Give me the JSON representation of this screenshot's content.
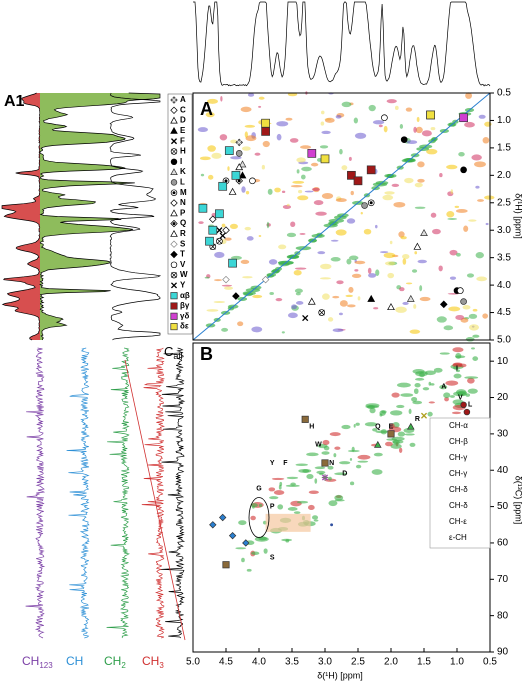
{
  "panel_a1_label": "A1",
  "c_all_label": {
    "main": "C",
    "sub": "all"
  },
  "trace_labels": [
    {
      "main": "CH",
      "sub": "123",
      "color": "#7b3fa6"
    },
    {
      "main": "CH",
      "sub": "",
      "color": "#2c8fd6"
    },
    {
      "main": "CH",
      "sub": "2",
      "color": "#2e9e4a"
    },
    {
      "main": "CH",
      "sub": "3",
      "color": "#d03030"
    }
  ],
  "chart_data": [
    {
      "type": "scatter",
      "panel_label": "A",
      "y_label": "δ(¹H) [ppm]",
      "xlim": [
        5.0,
        0.5
      ],
      "ylim": [
        0.5,
        5.0
      ],
      "yticks": [
        0.5,
        {
          "value": 1.0,
          "label": "1.0"
        },
        1.5,
        {
          "value": 2.0,
          "label": "2.0"
        },
        2.5,
        {
          "value": 3.0,
          "label": "3.0"
        },
        3.5,
        {
          "value": 4.0,
          "label": "4.0"
        },
        4.5,
        {
          "value": 5.0,
          "label": "5.0"
        }
      ],
      "series": [
        {
          "name": "A",
          "marker": "diamond-x",
          "color": "#888888",
          "x": [
            4.3
          ],
          "values": [
            1.4
          ]
        },
        {
          "name": "C",
          "marker": "diamond-open",
          "color": "#000000",
          "x": [
            4.5
          ],
          "values": [
            3.0
          ]
        },
        {
          "name": "D",
          "marker": "triangle-open",
          "color": "#000000",
          "x": [
            4.6
          ],
          "values": [
            2.7
          ]
        },
        {
          "name": "E",
          "marker": "triangle",
          "color": "#000000",
          "x": [
            4.25,
            2.3
          ],
          "values": [
            2.0,
            4.25
          ]
        },
        {
          "name": "F",
          "marker": "x",
          "color": "#000000",
          "x": [
            4.55
          ],
          "values": [
            3.1
          ]
        },
        {
          "name": "H",
          "marker": "circle-x",
          "color": "#000000",
          "x": [
            4.6
          ],
          "values": [
            3.2
          ]
        },
        {
          "name": "I",
          "marker": "circle",
          "color": "#000000",
          "x": [
            1.0,
            1.8,
            0.9
          ],
          "values": [
            4.1,
            1.35,
            1.9
          ]
        },
        {
          "name": "K",
          "marker": "triangle-open",
          "color": "#777777",
          "x": [
            4.25,
            1.7,
            1.5
          ],
          "values": [
            1.8,
            4.25,
            3.05
          ]
        },
        {
          "name": "L",
          "marker": "circle",
          "color": "#999999",
          "x": [
            4.3,
            0.9,
            2.4
          ],
          "values": [
            1.6,
            4.3,
            2.55
          ]
        },
        {
          "name": "M",
          "marker": "circle-dot",
          "color": "#000000",
          "x": [
            4.5,
            2.3
          ],
          "values": [
            2.1,
            2.5
          ]
        },
        {
          "name": "N",
          "marker": "diamond-open",
          "color": "#000000",
          "x": [
            4.7
          ],
          "values": [
            2.8
          ]
        },
        {
          "name": "P",
          "marker": "triangle-open",
          "color": "#000000",
          "x": [
            4.4,
            2.0
          ],
          "values": [
            2.3,
            4.4
          ]
        },
        {
          "name": "Q",
          "marker": "diamond-dot",
          "color": "#000000",
          "x": [
            4.3
          ],
          "values": [
            2.1
          ]
        },
        {
          "name": "R",
          "marker": "triangle-open",
          "color": "#000000",
          "x": [
            4.3,
            3.2,
            1.6
          ],
          "values": [
            1.85,
            4.3,
            3.3
          ]
        },
        {
          "name": "S",
          "marker": "diamond-open",
          "color": "#888888",
          "x": [
            4.5,
            3.9
          ],
          "values": [
            3.9,
            3.9
          ]
        },
        {
          "name": "T",
          "marker": "diamond",
          "color": "#000000",
          "x": [
            4.35,
            1.2
          ],
          "values": [
            4.2,
            4.35
          ]
        },
        {
          "name": "V",
          "marker": "circle-open",
          "color": "#000000",
          "x": [
            4.1,
            0.95,
            2.1
          ],
          "values": [
            2.1,
            4.1,
            0.95
          ]
        },
        {
          "name": "W",
          "marker": "circle-x",
          "color": "#000000",
          "x": [
            4.7,
            3.05
          ],
          "values": [
            3.3,
            4.5
          ]
        },
        {
          "name": "Y",
          "marker": "x",
          "color": "#000000",
          "x": [
            4.6,
            3.3
          ],
          "values": [
            3.0,
            4.6
          ]
        },
        {
          "name": "αβ",
          "marker": "square",
          "color": "#3cd6d6",
          "x": [
            4.45,
            4.35,
            4.6,
            4.7,
            4.55,
            4.85,
            4.4,
            4.75
          ],
          "values": [
            1.55,
            2.0,
            2.7,
            3.0,
            2.2,
            2.6,
            3.6,
            3.2
          ]
        },
        {
          "name": "βγ",
          "marker": "square",
          "color": "#a01818",
          "x": [
            2.6,
            2.3,
            3.9,
            2.5
          ],
          "values": [
            2.0,
            1.9,
            1.2,
            2.1
          ]
        },
        {
          "name": "γδ",
          "marker": "square",
          "color": "#d040d0",
          "x": [
            1.4,
            3.2,
            0.9
          ],
          "values": [
            0.9,
            1.6,
            0.95
          ]
        },
        {
          "name": "δε",
          "marker": "square",
          "color": "#f0e040",
          "x": [
            3.0,
            1.4,
            3.9
          ],
          "values": [
            1.7,
            0.9,
            1.05
          ]
        }
      ]
    },
    {
      "type": "scatter",
      "panel_label": "B",
      "x_label": "δ(¹H) [ppm]",
      "y_label": "δ(¹³C) [ppm]",
      "xlim": [
        5.0,
        0.5
      ],
      "ylim": [
        5,
        90
      ],
      "xticks": [
        {
          "value": 5.0,
          "label": "5.0"
        },
        4.5,
        {
          "value": 4.0,
          "label": "4.0"
        },
        3.5,
        {
          "value": 3.0,
          "label": "3.0"
        },
        2.5,
        {
          "value": 2.0,
          "label": "2.0"
        },
        1.5,
        {
          "value": 1.0,
          "label": "1.0"
        },
        0.5
      ],
      "yticks": [
        10,
        20,
        30,
        40,
        50,
        60,
        70,
        80,
        90
      ],
      "series": [
        {
          "name": "CH-α",
          "marker": "diamond",
          "color": "#2a7fd0",
          "x": [
            4.7,
            4.4,
            4.2,
            4.55
          ],
          "values": [
            55,
            58,
            60,
            53
          ]
        },
        {
          "name": "CH-β",
          "marker": "square",
          "color": "#8a6a3a",
          "x": [
            3.3,
            3.0,
            4.5,
            2.0
          ],
          "values": [
            26,
            38,
            66,
            30
          ]
        },
        {
          "name": "CH-γ",
          "marker": "triangle",
          "color": "#3cb04a",
          "x": [
            2.2,
            1.7
          ],
          "values": [
            33,
            28
          ]
        },
        {
          "name": "CH-γ",
          "marker": "x",
          "color": "#b0a020",
          "x": [
            1.5
          ],
          "values": [
            25
          ]
        },
        {
          "name": "CH-δ",
          "marker": "x",
          "color": "#a040b0",
          "x": [
            3.0
          ],
          "values": [
            42
          ]
        },
        {
          "name": "CH-δ",
          "marker": "circle",
          "color": "#a01818",
          "x": [
            0.9,
            0.85
          ],
          "values": [
            22,
            24
          ]
        },
        {
          "name": "CH-ε",
          "marker": "plus",
          "color": "#777777",
          "x": [
            3.0
          ],
          "values": [
            42
          ]
        },
        {
          "name": "ε-CH",
          "marker": "dot",
          "color": "#3050a0",
          "x": [
            2.9
          ],
          "values": [
            55
          ]
        }
      ],
      "annotations": [
        {
          "text": "A",
          "x": 1.2,
          "y": 17
        },
        {
          "text": "I",
          "x": 1.0,
          "y": 12
        },
        {
          "text": "V",
          "x": 0.95,
          "y": 20
        },
        {
          "text": "L",
          "x": 0.8,
          "y": 22
        },
        {
          "text": "R",
          "x": 1.6,
          "y": 26
        },
        {
          "text": "Q",
          "x": 2.2,
          "y": 28
        },
        {
          "text": "E",
          "x": 2.0,
          "y": 28
        },
        {
          "text": "K",
          "x": 1.3,
          "y": 30
        },
        {
          "text": "T",
          "x": 1.1,
          "y": 33
        },
        {
          "text": "H",
          "x": 3.2,
          "y": 28
        },
        {
          "text": "W",
          "x": 3.1,
          "y": 33
        },
        {
          "text": "G",
          "x": 4.0,
          "y": 45
        },
        {
          "text": "Y",
          "x": 3.8,
          "y": 38
        },
        {
          "text": "F",
          "x": 3.6,
          "y": 38
        },
        {
          "text": "N",
          "x": 2.9,
          "y": 38
        },
        {
          "text": "D",
          "x": 2.7,
          "y": 41
        },
        {
          "text": "P",
          "x": 3.8,
          "y": 50
        },
        {
          "text": "S",
          "x": 3.8,
          "y": 64
        }
      ]
    }
  ]
}
